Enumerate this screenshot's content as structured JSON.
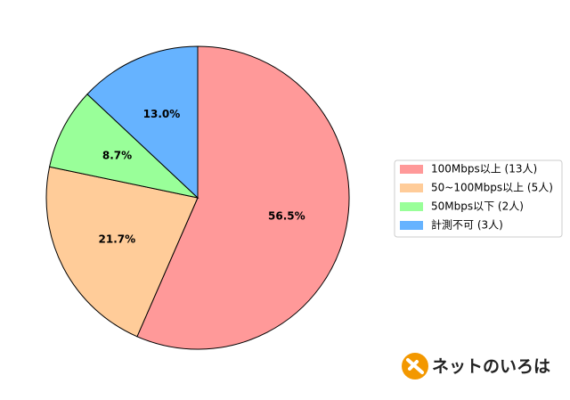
{
  "chart_data": {
    "type": "pie",
    "categories": [
      "100Mbps以上 (13人)",
      "50~100Mbps以上 (5人)",
      "50Mbps以下 (2人)",
      "計測不可 (3人)"
    ],
    "values": [
      56.5,
      21.7,
      8.7,
      13.0
    ],
    "value_labels": [
      "56.5%",
      "21.7%",
      "8.7%",
      "13.0%"
    ],
    "colors": [
      "#ff9999",
      "#ffcc99",
      "#99ff99",
      "#66b3ff"
    ],
    "legend": "right"
  },
  "logo": "ネットのいろは"
}
